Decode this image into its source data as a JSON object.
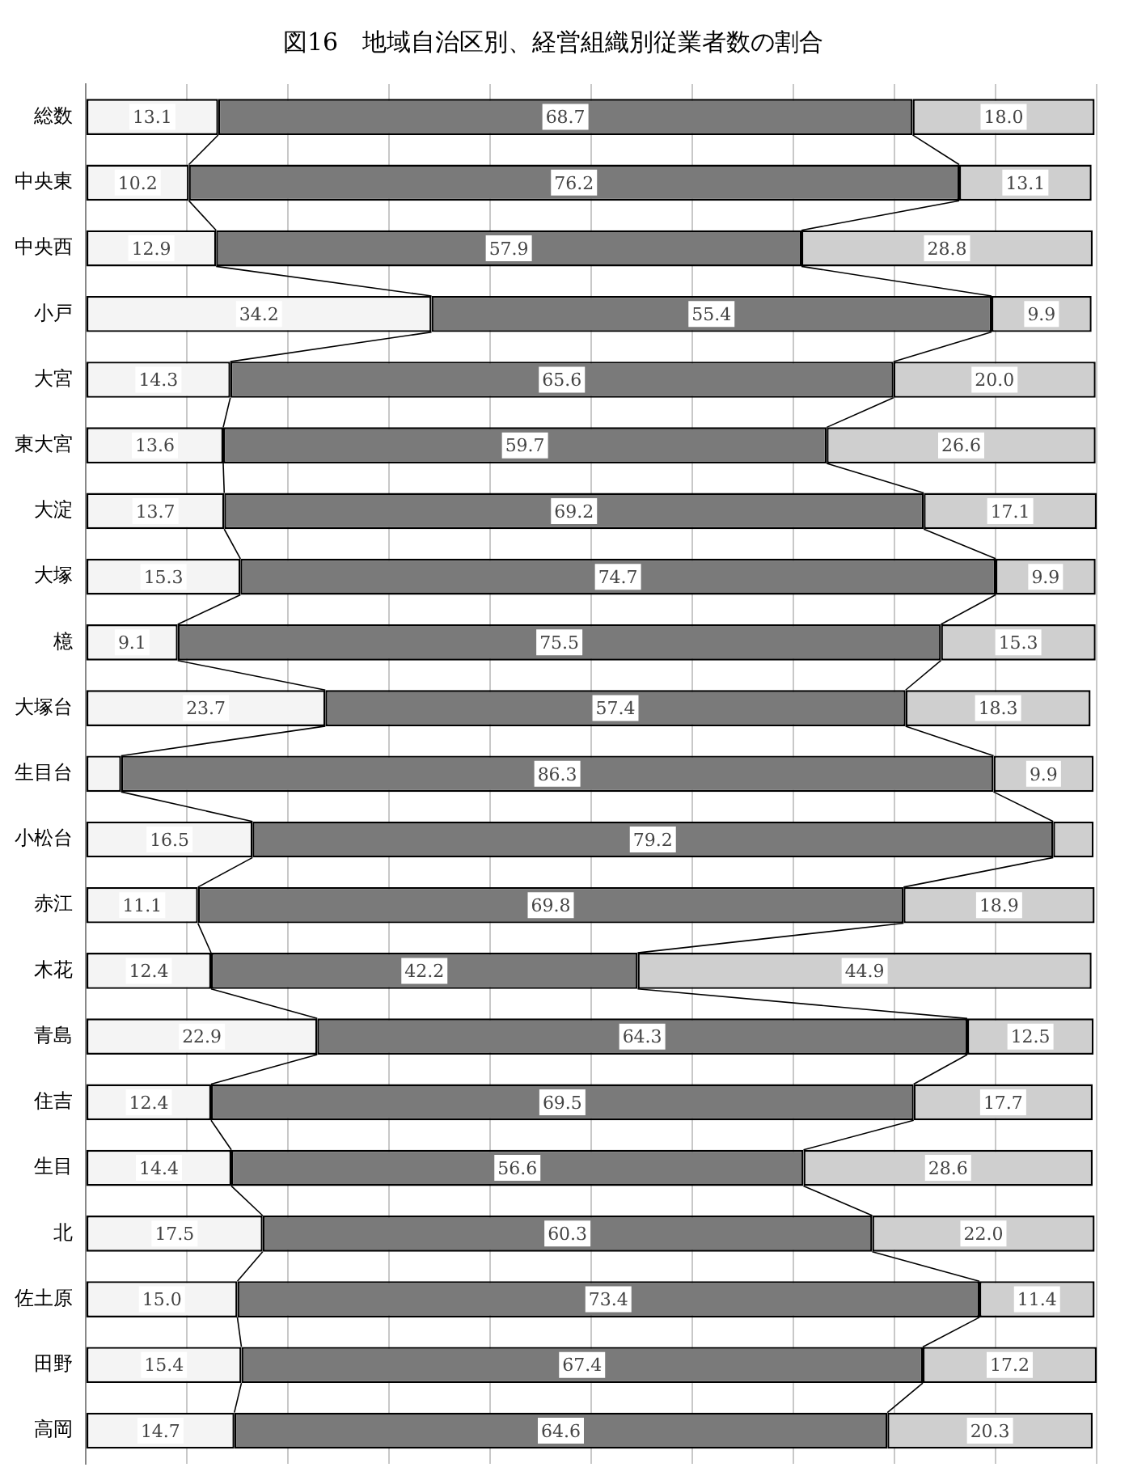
{
  "chart_data": {
    "type": "bar",
    "orientation": "horizontal",
    "stacked": true,
    "title": "図16　地域自治区別、経営組織別従業者数の割合",
    "categories": [
      "総数",
      "中央東",
      "中央西",
      "小戸",
      "大宮",
      "東大宮",
      "大淀",
      "大塚",
      "檍",
      "大塚台",
      "生目台",
      "小松台",
      "赤江",
      "木花",
      "青島",
      "住吉",
      "生目",
      "北",
      "佐土原",
      "田野",
      "高岡"
    ],
    "series": [
      {
        "color": "#f4f4f4",
        "values": [
          13.1,
          10.2,
          12.9,
          34.2,
          14.3,
          13.6,
          13.7,
          15.3,
          9.1,
          23.7,
          3.5,
          16.5,
          11.1,
          12.4,
          22.9,
          12.4,
          14.4,
          17.5,
          15.0,
          15.4,
          14.7
        ],
        "value_labels": [
          "13.1",
          "10.2",
          "12.9",
          "34.2",
          "14.3",
          "13.6",
          "13.7",
          "15.3",
          "9.1",
          "23.7",
          null,
          "16.5",
          "11.1",
          "12.4",
          "22.9",
          "12.4",
          "14.4",
          "17.5",
          "15.0",
          "15.4",
          "14.7"
        ]
      },
      {
        "color": "#7a7a7a",
        "values": [
          68.7,
          76.2,
          57.9,
          55.4,
          65.6,
          59.7,
          69.2,
          74.7,
          75.5,
          57.4,
          86.3,
          79.2,
          69.8,
          42.2,
          64.3,
          69.5,
          56.6,
          60.3,
          73.4,
          67.4,
          64.6
        ],
        "value_labels": [
          "68.7",
          "76.2",
          "57.9",
          "55.4",
          "65.6",
          "59.7",
          "69.2",
          "74.7",
          "75.5",
          "57.4",
          "86.3",
          "79.2",
          "69.8",
          "42.2",
          "64.3",
          "69.5",
          "56.6",
          "60.3",
          "73.4",
          "67.4",
          "64.6"
        ]
      },
      {
        "color": "#cfcfcf",
        "values": [
          18.0,
          13.1,
          28.8,
          9.9,
          20.0,
          26.6,
          17.1,
          9.9,
          15.3,
          18.3,
          9.9,
          4.0,
          18.9,
          44.9,
          12.5,
          17.7,
          28.6,
          22.0,
          11.4,
          17.2,
          20.3
        ],
        "value_labels": [
          "18.0",
          "13.1",
          "28.8",
          "9.9",
          "20.0",
          "26.6",
          "17.1",
          "9.9",
          "15.3",
          "18.3",
          "9.9",
          null,
          "18.9",
          "44.9",
          "12.5",
          "17.7",
          "28.6",
          "22.0",
          "11.4",
          "17.2",
          "20.3"
        ]
      }
    ],
    "xlim": [
      0,
      100
    ],
    "xticks": [
      {
        "value": 0,
        "label": null
      },
      {
        "value": 10,
        "label": null
      },
      {
        "value": 20,
        "label": null
      },
      {
        "value": 30,
        "label": null
      },
      {
        "value": 40,
        "label": null
      },
      {
        "value": 50,
        "label": null
      },
      {
        "value": 60,
        "label": null
      },
      {
        "value": 70,
        "label": null
      },
      {
        "value": 80,
        "label": null
      },
      {
        "value": 90,
        "label": null
      },
      {
        "value": 100,
        "label": null
      }
    ],
    "tick_labels": "y",
    "grid": "x",
    "legend": false
  }
}
